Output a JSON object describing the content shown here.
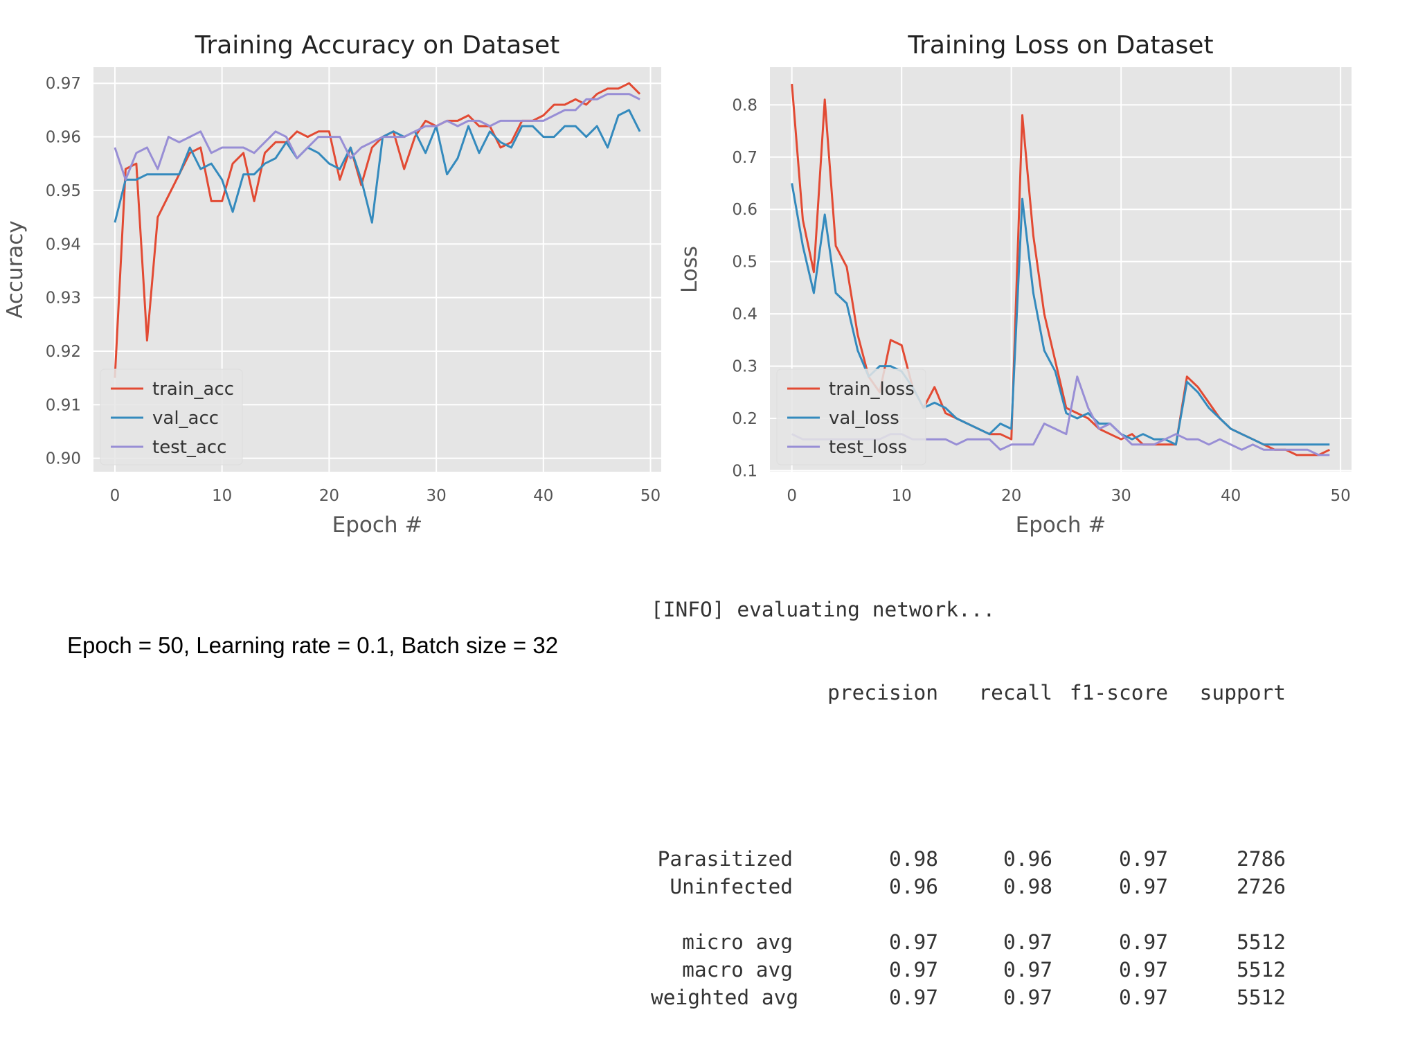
{
  "chart_data": [
    {
      "type": "line",
      "title": "Training Accuracy on Dataset",
      "xlabel": "Epoch #",
      "ylabel": "Accuracy",
      "xlim": [
        -2,
        51
      ],
      "ylim": [
        0.8975,
        0.973
      ],
      "xticks": [
        0,
        10,
        20,
        30,
        40,
        50
      ],
      "yticks": [
        0.9,
        0.91,
        0.92,
        0.93,
        0.94,
        0.95,
        0.96,
        0.97
      ],
      "ytick_labels": [
        "0.90",
        "0.91",
        "0.92",
        "0.93",
        "0.94",
        "0.95",
        "0.96",
        "0.97"
      ],
      "grid": true,
      "legend": "lower-left",
      "x": [
        0,
        1,
        2,
        3,
        4,
        5,
        6,
        7,
        8,
        9,
        10,
        11,
        12,
        13,
        14,
        15,
        16,
        17,
        18,
        19,
        20,
        21,
        22,
        23,
        24,
        25,
        26,
        27,
        28,
        29,
        30,
        31,
        32,
        33,
        34,
        35,
        36,
        37,
        38,
        39,
        40,
        41,
        42,
        43,
        44,
        45,
        46,
        47,
        48,
        49
      ],
      "series": [
        {
          "name": "train_acc",
          "color": "#e24a33",
          "values": [
            0.915,
            0.954,
            0.955,
            0.922,
            0.945,
            0.949,
            0.953,
            0.957,
            0.958,
            0.948,
            0.948,
            0.955,
            0.957,
            0.948,
            0.957,
            0.959,
            0.959,
            0.961,
            0.96,
            0.961,
            0.961,
            0.952,
            0.958,
            0.951,
            0.958,
            0.96,
            0.961,
            0.954,
            0.96,
            0.963,
            0.962,
            0.963,
            0.963,
            0.964,
            0.962,
            0.962,
            0.958,
            0.959,
            0.963,
            0.963,
            0.964,
            0.966,
            0.966,
            0.967,
            0.966,
            0.968,
            0.969,
            0.969,
            0.97,
            0.968
          ]
        },
        {
          "name": "val_acc",
          "color": "#348abd",
          "values": [
            0.944,
            0.952,
            0.952,
            0.953,
            0.953,
            0.953,
            0.953,
            0.958,
            0.954,
            0.955,
            0.952,
            0.946,
            0.953,
            0.953,
            0.955,
            0.956,
            0.959,
            0.956,
            0.958,
            0.957,
            0.955,
            0.954,
            0.958,
            0.952,
            0.944,
            0.96,
            0.961,
            0.96,
            0.961,
            0.957,
            0.962,
            0.953,
            0.956,
            0.962,
            0.957,
            0.961,
            0.959,
            0.958,
            0.962,
            0.962,
            0.96,
            0.96,
            0.962,
            0.962,
            0.96,
            0.962,
            0.958,
            0.964,
            0.965,
            0.961
          ]
        },
        {
          "name": "test_acc",
          "color": "#988ed5",
          "values": [
            0.958,
            0.952,
            0.957,
            0.958,
            0.954,
            0.96,
            0.959,
            0.96,
            0.961,
            0.957,
            0.958,
            0.958,
            0.958,
            0.957,
            0.959,
            0.961,
            0.96,
            0.956,
            0.958,
            0.96,
            0.96,
            0.96,
            0.956,
            0.958,
            0.959,
            0.96,
            0.96,
            0.96,
            0.961,
            0.962,
            0.962,
            0.963,
            0.962,
            0.963,
            0.963,
            0.962,
            0.963,
            0.963,
            0.963,
            0.963,
            0.963,
            0.964,
            0.965,
            0.965,
            0.967,
            0.967,
            0.968,
            0.968,
            0.968,
            0.967
          ]
        }
      ]
    },
    {
      "type": "line",
      "title": "Training Loss on Dataset",
      "xlabel": "Epoch #",
      "ylabel": "Loss",
      "xlim": [
        -2,
        51
      ],
      "ylim": [
        0.098,
        0.872
      ],
      "xticks": [
        0,
        10,
        20,
        30,
        40,
        50
      ],
      "yticks": [
        0.1,
        0.2,
        0.3,
        0.4,
        0.5,
        0.6,
        0.7,
        0.8
      ],
      "ytick_labels": [
        "0.1",
        "0.2",
        "0.3",
        "0.4",
        "0.5",
        "0.6",
        "0.7",
        "0.8"
      ],
      "grid": true,
      "legend": "lower-left",
      "x": [
        0,
        1,
        2,
        3,
        4,
        5,
        6,
        7,
        8,
        9,
        10,
        11,
        12,
        13,
        14,
        15,
        16,
        17,
        18,
        19,
        20,
        21,
        22,
        23,
        24,
        25,
        26,
        27,
        28,
        29,
        30,
        31,
        32,
        33,
        34,
        35,
        36,
        37,
        38,
        39,
        40,
        41,
        42,
        43,
        44,
        45,
        46,
        47,
        48,
        49
      ],
      "series": [
        {
          "name": "train_loss",
          "color": "#e24a33",
          "values": [
            0.84,
            0.58,
            0.48,
            0.81,
            0.53,
            0.49,
            0.36,
            0.28,
            0.25,
            0.35,
            0.34,
            0.26,
            0.22,
            0.26,
            0.21,
            0.2,
            0.19,
            0.18,
            0.17,
            0.17,
            0.16,
            0.78,
            0.55,
            0.4,
            0.31,
            0.22,
            0.21,
            0.2,
            0.18,
            0.17,
            0.16,
            0.17,
            0.15,
            0.15,
            0.15,
            0.15,
            0.28,
            0.26,
            0.23,
            0.2,
            0.18,
            0.17,
            0.16,
            0.15,
            0.14,
            0.14,
            0.13,
            0.13,
            0.13,
            0.14
          ]
        },
        {
          "name": "val_loss",
          "color": "#348abd",
          "values": [
            0.65,
            0.53,
            0.44,
            0.59,
            0.44,
            0.42,
            0.33,
            0.28,
            0.3,
            0.3,
            0.29,
            0.26,
            0.22,
            0.23,
            0.22,
            0.2,
            0.19,
            0.18,
            0.17,
            0.19,
            0.18,
            0.62,
            0.44,
            0.33,
            0.29,
            0.21,
            0.2,
            0.21,
            0.19,
            0.19,
            0.17,
            0.16,
            0.17,
            0.16,
            0.16,
            0.15,
            0.27,
            0.25,
            0.22,
            0.2,
            0.18,
            0.17,
            0.16,
            0.15,
            0.15,
            0.15,
            0.15,
            0.15,
            0.15,
            0.15
          ]
        },
        {
          "name": "test_loss",
          "color": "#988ed5",
          "values": [
            0.17,
            0.16,
            0.16,
            0.16,
            0.16,
            0.16,
            0.16,
            0.16,
            0.16,
            0.17,
            0.17,
            0.16,
            0.16,
            0.16,
            0.16,
            0.15,
            0.16,
            0.16,
            0.16,
            0.14,
            0.15,
            0.15,
            0.15,
            0.19,
            0.18,
            0.17,
            0.28,
            0.22,
            0.18,
            0.19,
            0.17,
            0.15,
            0.15,
            0.15,
            0.16,
            0.17,
            0.16,
            0.16,
            0.15,
            0.16,
            0.15,
            0.14,
            0.15,
            0.14,
            0.14,
            0.14,
            0.14,
            0.14,
            0.13,
            0.13
          ]
        }
      ]
    }
  ],
  "caption": "Epoch = 50, Learning rate = 0.1, Batch size = 32",
  "report": {
    "info_line": "[INFO] evaluating network...",
    "headers": [
      "",
      "precision",
      "recall",
      "f1-score",
      "support"
    ],
    "rows": [
      [
        "Parasitized",
        "0.98",
        "0.96",
        "0.97",
        "2786"
      ],
      [
        "Uninfected",
        "0.96",
        "0.98",
        "0.97",
        "2726"
      ],
      [],
      [
        "micro avg",
        "0.97",
        "0.97",
        "0.97",
        "5512"
      ],
      [
        "macro avg",
        "0.97",
        "0.97",
        "0.97",
        "5512"
      ],
      [
        "weighted avg",
        "0.97",
        "0.97",
        "0.97",
        "5512"
      ]
    ]
  }
}
